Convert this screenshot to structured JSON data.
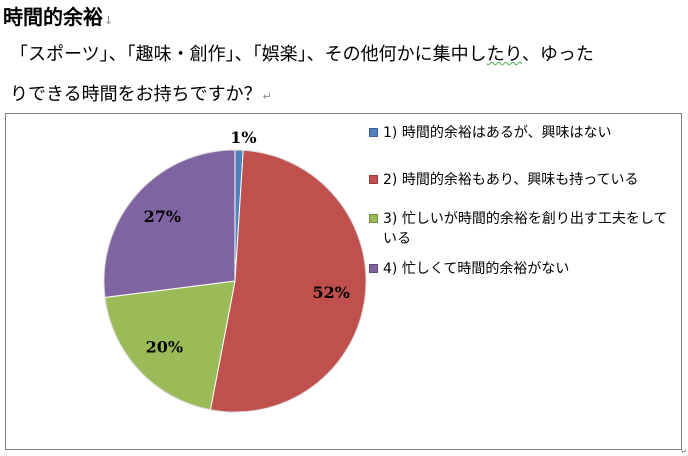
{
  "heading": {
    "title": "時間的余裕",
    "mark": "↓"
  },
  "paragraph": {
    "line1_a": "「スポーツ」、「趣味・創作」、「娯楽」、その他何かに集中したり",
    "line1_b": "、ゆった",
    "line2": "りできる時間をお持ちですか？",
    "line2_mark": "↵"
  },
  "colors": {
    "blue": "#4f81bd",
    "red": "#c0504d",
    "green": "#9bbb59",
    "purple": "#8064a2"
  },
  "chart_data": {
    "type": "pie",
    "title": "",
    "start_angle_deg": 0,
    "direction": "clockwise",
    "legend_position": "right",
    "slices": [
      {
        "label": "1) 時間的余裕はあるが、興味はない",
        "value": 1,
        "display": "1%",
        "color": "#4f81bd"
      },
      {
        "label": "2) 時間的余裕もあり、興味も持っている",
        "value": 52,
        "display": "52%",
        "color": "#c0504d"
      },
      {
        "label": "3) 忙しいが時間的余裕を創り出す工夫をしている",
        "value": 20,
        "display": "20%",
        "color": "#9bbb59"
      },
      {
        "label": "4) 忙しくて時間的余裕がない",
        "value": 27,
        "display": "27%",
        "color": "#8064a2"
      }
    ]
  },
  "end_mark": "↵"
}
